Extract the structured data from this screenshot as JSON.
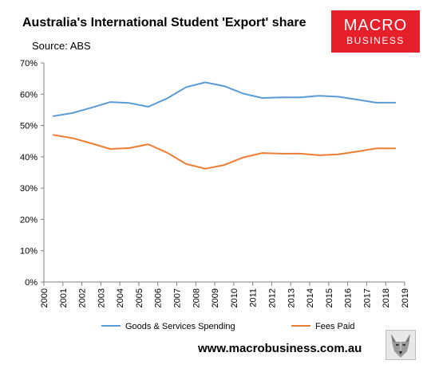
{
  "header": {
    "title": "Australia's International Student 'Export' share",
    "source": "Source: ABS"
  },
  "logo": {
    "line1": "MACRO",
    "line2": "BUSINESS",
    "color": "#e5202b"
  },
  "footer": {
    "url": "www.macrobusiness.com.au",
    "mascot_icon": "wolf-icon"
  },
  "chart_data": {
    "type": "line",
    "title": "Australia's International Student 'Export' share",
    "subtitle": "Source: ABS",
    "xlabel": "",
    "ylabel": "",
    "x_ticks": [
      "2000",
      "2001",
      "2002",
      "2003",
      "2004",
      "2005",
      "2006",
      "2007",
      "2008",
      "2009",
      "2010",
      "2011",
      "2012",
      "2013",
      "2014",
      "2015",
      "2016",
      "2017",
      "2018",
      "2019"
    ],
    "y_ticks": [
      "0%",
      "10%",
      "20%",
      "30%",
      "40%",
      "50%",
      "60%",
      "70%"
    ],
    "xlim": [
      2000,
      2019
    ],
    "ylim": [
      0,
      70
    ],
    "grid": false,
    "legend_position": "bottom",
    "series": [
      {
        "name": "Goods & Services Spending",
        "color": "#5b9bd5",
        "points": [
          [
            2000.5,
            53.0
          ],
          [
            2001.5,
            54.0
          ],
          [
            2002.5,
            55.7
          ],
          [
            2003.5,
            57.5
          ],
          [
            2004.5,
            57.2
          ],
          [
            2005.5,
            56.0
          ],
          [
            2006.5,
            58.7
          ],
          [
            2007.5,
            62.3
          ],
          [
            2008.5,
            63.8
          ],
          [
            2009.5,
            62.6
          ],
          [
            2010.5,
            60.2
          ],
          [
            2011.5,
            58.8
          ],
          [
            2012.5,
            59.0
          ],
          [
            2013.5,
            59.0
          ],
          [
            2014.5,
            59.5
          ],
          [
            2015.5,
            59.2
          ],
          [
            2016.5,
            58.3
          ],
          [
            2017.5,
            57.3
          ],
          [
            2018.5,
            57.3
          ]
        ]
      },
      {
        "name": "Fees Paid",
        "color": "#ed7d31",
        "points": [
          [
            2000.5,
            47.0
          ],
          [
            2001.5,
            46.0
          ],
          [
            2002.5,
            44.3
          ],
          [
            2003.5,
            42.5
          ],
          [
            2004.5,
            42.8
          ],
          [
            2005.5,
            44.0
          ],
          [
            2006.5,
            41.3
          ],
          [
            2007.5,
            37.7
          ],
          [
            2008.5,
            36.2
          ],
          [
            2009.5,
            37.4
          ],
          [
            2010.5,
            39.8
          ],
          [
            2011.5,
            41.2
          ],
          [
            2012.5,
            41.0
          ],
          [
            2013.5,
            41.0
          ],
          [
            2014.5,
            40.5
          ],
          [
            2015.5,
            40.8
          ],
          [
            2016.5,
            41.7
          ],
          [
            2017.5,
            42.7
          ],
          [
            2018.5,
            42.7
          ]
        ]
      }
    ]
  }
}
